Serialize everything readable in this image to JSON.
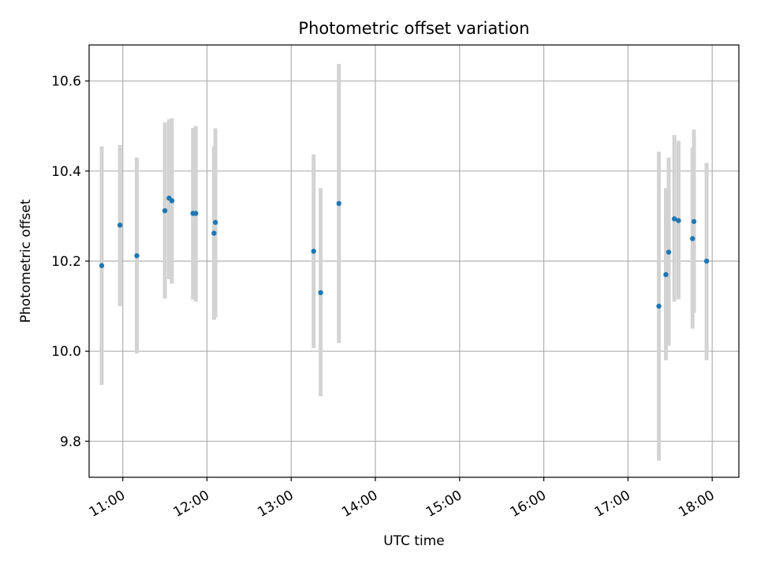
{
  "chart_data": {
    "type": "scatter",
    "title": "Photometric offset variation",
    "xlabel": "UTC time",
    "ylabel": "Photometric offset",
    "x_tick_labels": [
      "11:00",
      "12:00",
      "13:00",
      "14:00",
      "15:00",
      "16:00",
      "17:00",
      "18:00"
    ],
    "x_ticks": [
      "11:00",
      "12:00",
      "13:00",
      "14:00",
      "15:00",
      "16:00",
      "17:00",
      "18:00"
    ],
    "y_ticks": [
      9.8,
      10.0,
      10.2,
      10.4,
      10.6
    ],
    "y_tick_labels": [
      "9.8",
      "10.0",
      "10.2",
      "10.4",
      "10.6"
    ],
    "xlim": [
      "10:36",
      "18:19"
    ],
    "ylim": [
      9.72,
      10.68
    ],
    "grid": true,
    "point_color": "#1f77b4",
    "errorbar_color": "#d3d3d3",
    "points": [
      {
        "x": "10:45",
        "y": 10.19,
        "ylow": 9.925,
        "yhigh": 10.455
      },
      {
        "x": "10:58",
        "y": 10.28,
        "ylow": 10.1,
        "yhigh": 10.458
      },
      {
        "x": "11:10",
        "y": 10.212,
        "ylow": 9.995,
        "yhigh": 10.43
      },
      {
        "x": "11:30",
        "y": 10.312,
        "ylow": 10.117,
        "yhigh": 10.508
      },
      {
        "x": "11:33",
        "y": 10.34,
        "ylow": 10.16,
        "yhigh": 10.515
      },
      {
        "x": "11:35",
        "y": 10.334,
        "ylow": 10.15,
        "yhigh": 10.517
      },
      {
        "x": "11:50",
        "y": 10.306,
        "ylow": 10.115,
        "yhigh": 10.496
      },
      {
        "x": "11:52",
        "y": 10.306,
        "ylow": 10.11,
        "yhigh": 10.5
      },
      {
        "x": "12:05",
        "y": 10.262,
        "ylow": 10.07,
        "yhigh": 10.455
      },
      {
        "x": "12:06",
        "y": 10.286,
        "ylow": 10.075,
        "yhigh": 10.495
      },
      {
        "x": "13:16",
        "y": 10.222,
        "ylow": 10.007,
        "yhigh": 10.437
      },
      {
        "x": "13:21",
        "y": 10.13,
        "ylow": 9.9,
        "yhigh": 10.362
      },
      {
        "x": "13:34",
        "y": 10.328,
        "ylow": 10.018,
        "yhigh": 10.638
      },
      {
        "x": "17:22",
        "y": 10.1,
        "ylow": 9.757,
        "yhigh": 10.443
      },
      {
        "x": "17:27",
        "y": 10.17,
        "ylow": 9.98,
        "yhigh": 10.362
      },
      {
        "x": "17:29",
        "y": 10.22,
        "ylow": 10.012,
        "yhigh": 10.43
      },
      {
        "x": "17:33",
        "y": 10.294,
        "ylow": 10.11,
        "yhigh": 10.48
      },
      {
        "x": "17:36",
        "y": 10.29,
        "ylow": 10.115,
        "yhigh": 10.467
      },
      {
        "x": "17:46",
        "y": 10.25,
        "ylow": 10.05,
        "yhigh": 10.452
      },
      {
        "x": "17:47",
        "y": 10.288,
        "ylow": 10.085,
        "yhigh": 10.492
      },
      {
        "x": "17:56",
        "y": 10.2,
        "ylow": 9.98,
        "yhigh": 10.418
      }
    ]
  }
}
